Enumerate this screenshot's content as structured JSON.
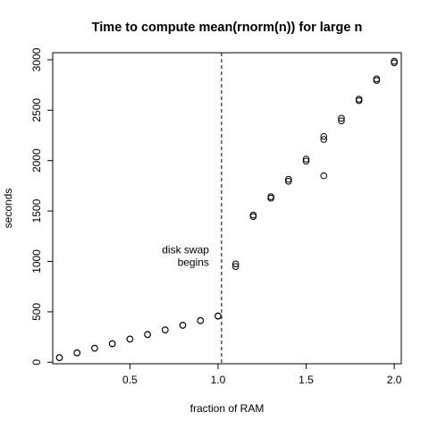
{
  "chart_data": {
    "type": "scatter",
    "title": "Time to compute mean(rnorm(n)) for large n",
    "xlabel": "fraction of RAM",
    "ylabel": "seconds",
    "xlim": [
      0.062,
      2.04
    ],
    "ylim": [
      -15,
      3070
    ],
    "x_ticks": [
      0.5,
      1.0,
      1.5,
      2.0
    ],
    "x_tick_labels": [
      "0.5",
      "1.0",
      "1.5",
      "2.0"
    ],
    "y_ticks": [
      0,
      500,
      1000,
      1500,
      2000,
      2500,
      3000
    ],
    "y_tick_labels": [
      "0",
      "500",
      "1000",
      "1500",
      "2000",
      "2500",
      "3000"
    ],
    "vline_x": 1.02,
    "annotation": {
      "lines": [
        "disk swap",
        "begins"
      ],
      "x": 1.0,
      "y": 1082
    },
    "grid": false,
    "points": [
      {
        "x": 0.1,
        "y": 45
      },
      {
        "x": 0.1,
        "y": 47
      },
      {
        "x": 0.2,
        "y": 92
      },
      {
        "x": 0.2,
        "y": 94
      },
      {
        "x": 0.3,
        "y": 138
      },
      {
        "x": 0.3,
        "y": 140
      },
      {
        "x": 0.4,
        "y": 183
      },
      {
        "x": 0.4,
        "y": 185
      },
      {
        "x": 0.5,
        "y": 229
      },
      {
        "x": 0.5,
        "y": 231
      },
      {
        "x": 0.6,
        "y": 274
      },
      {
        "x": 0.6,
        "y": 276
      },
      {
        "x": 0.7,
        "y": 320
      },
      {
        "x": 0.7,
        "y": 322
      },
      {
        "x": 0.8,
        "y": 366
      },
      {
        "x": 0.8,
        "y": 368
      },
      {
        "x": 0.9,
        "y": 412
      },
      {
        "x": 0.9,
        "y": 414
      },
      {
        "x": 1.0,
        "y": 457
      },
      {
        "x": 1.0,
        "y": 460
      },
      {
        "x": 1.1,
        "y": 950
      },
      {
        "x": 1.1,
        "y": 975
      },
      {
        "x": 1.2,
        "y": 1445
      },
      {
        "x": 1.2,
        "y": 1460
      },
      {
        "x": 1.3,
        "y": 1628
      },
      {
        "x": 1.3,
        "y": 1642
      },
      {
        "x": 1.4,
        "y": 1795
      },
      {
        "x": 1.4,
        "y": 1815
      },
      {
        "x": 1.5,
        "y": 1995
      },
      {
        "x": 1.5,
        "y": 2015
      },
      {
        "x": 1.6,
        "y": 1850
      },
      {
        "x": 1.6,
        "y": 2210
      },
      {
        "x": 1.6,
        "y": 2240
      },
      {
        "x": 1.7,
        "y": 2395
      },
      {
        "x": 1.7,
        "y": 2420
      },
      {
        "x": 1.8,
        "y": 2595
      },
      {
        "x": 1.8,
        "y": 2610
      },
      {
        "x": 1.9,
        "y": 2795
      },
      {
        "x": 1.9,
        "y": 2810
      },
      {
        "x": 2.0,
        "y": 2970
      },
      {
        "x": 2.0,
        "y": 2985
      }
    ]
  }
}
